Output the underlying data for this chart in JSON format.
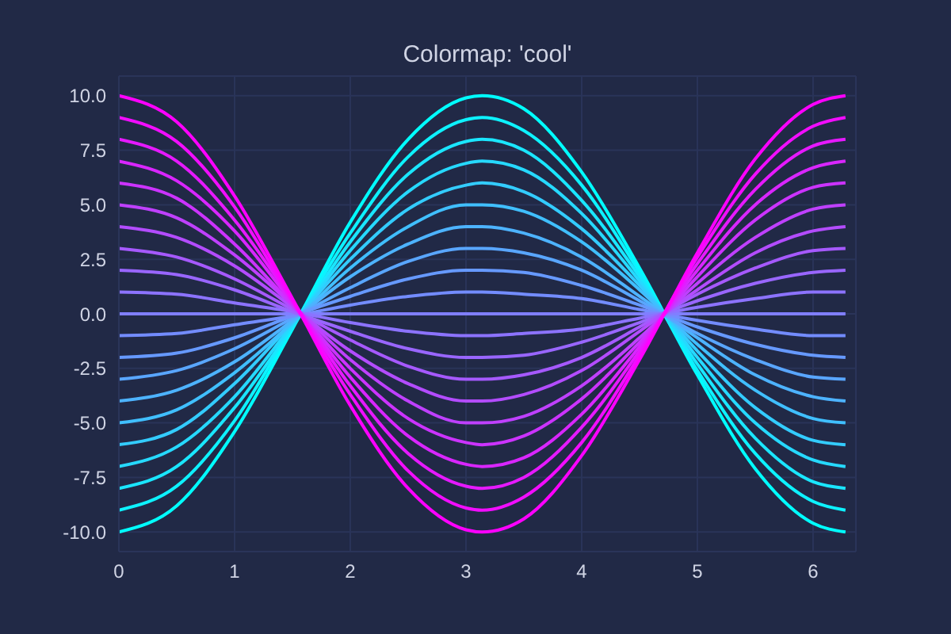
{
  "chart_data": {
    "type": "line",
    "title": "Colormap: 'cool'",
    "x": [
      0,
      0.5,
      1,
      1.5,
      2,
      2.5,
      3,
      3.14,
      3.5,
      4,
      4.5,
      5,
      5.5,
      6,
      6.28
    ],
    "xlim": [
      0,
      6.37
    ],
    "xticks": [
      0,
      1,
      2,
      3,
      4,
      5,
      6
    ],
    "ylim": [
      -10.9,
      10.9
    ],
    "yticks": [
      {
        "value": -10,
        "label": "-10.0"
      },
      {
        "value": -7.5,
        "label": "-7.5"
      },
      {
        "value": -5,
        "label": "-5.0"
      },
      {
        "value": -2.5,
        "label": "-2.5"
      },
      {
        "value": 0,
        "label": "0.0"
      },
      {
        "value": 2.5,
        "label": "2.5"
      },
      {
        "value": 5,
        "label": "5.0"
      },
      {
        "value": 7.5,
        "label": "7.5"
      },
      {
        "value": 10,
        "label": "10.0"
      }
    ],
    "grid": true,
    "marker": "none",
    "line_style": "solid",
    "series": [
      {
        "color": "#00ffff",
        "values": [
          -10,
          -8.8,
          -5.4,
          -0.7,
          4.2,
          8,
          9.9,
          10,
          9.4,
          6.5,
          2.1,
          -2.8,
          -7.1,
          -9.6,
          -10
        ]
      },
      {
        "color": "#0df2ff",
        "values": [
          -9,
          -7.9,
          -4.9,
          -0.6,
          3.7,
          7.2,
          8.9,
          9,
          8.4,
          5.9,
          1.9,
          -2.6,
          -6.4,
          -8.6,
          -9
        ]
      },
      {
        "color": "#1ae6ff",
        "values": [
          -8,
          -7,
          -4.3,
          -0.6,
          3.3,
          6.4,
          7.9,
          8,
          7.5,
          5.2,
          1.7,
          -2.3,
          -5.7,
          -7.7,
          -8
        ]
      },
      {
        "color": "#26d9ff",
        "values": [
          -7,
          -6.1,
          -3.8,
          -0.5,
          2.9,
          5.6,
          6.9,
          7,
          6.6,
          4.6,
          1.5,
          -2,
          -5,
          -6.7,
          -7
        ]
      },
      {
        "color": "#33ccff",
        "values": [
          -6,
          -5.3,
          -3.2,
          -0.4,
          2.5,
          4.8,
          5.9,
          6,
          5.6,
          3.9,
          1.3,
          -1.7,
          -4.3,
          -5.8,
          -6
        ]
      },
      {
        "color": "#40bfff",
        "values": [
          -5,
          -4.4,
          -2.7,
          -0.4,
          2.1,
          4,
          5,
          5,
          4.7,
          3.3,
          1.1,
          -1.4,
          -3.5,
          -4.8,
          -5
        ]
      },
      {
        "color": "#4db3ff",
        "values": [
          -4,
          -3.5,
          -2.2,
          -0.3,
          1.7,
          3.2,
          4,
          4,
          3.7,
          2.6,
          0.8,
          -1.1,
          -2.8,
          -3.8,
          -4
        ]
      },
      {
        "color": "#59a6ff",
        "values": [
          -3,
          -2.6,
          -1.6,
          -0.2,
          1.2,
          2.4,
          3,
          3,
          2.8,
          2,
          0.6,
          -0.9,
          -2.1,
          -2.9,
          -3
        ]
      },
      {
        "color": "#6699ff",
        "values": [
          -2,
          -1.8,
          -1.1,
          -0.1,
          0.8,
          1.6,
          2,
          2,
          1.9,
          1.3,
          0.4,
          -0.6,
          -1.4,
          -1.9,
          -2
        ]
      },
      {
        "color": "#738cff",
        "values": [
          -1,
          -0.9,
          -0.5,
          -0.1,
          0.4,
          0.8,
          1,
          1,
          0.9,
          0.7,
          0.2,
          -0.3,
          -0.7,
          -1,
          -1
        ]
      },
      {
        "color": "#807fff",
        "values": [
          0,
          0,
          0,
          0,
          0,
          0,
          0,
          0,
          0,
          0,
          0,
          0,
          0,
          0,
          0
        ]
      },
      {
        "color": "#8c73ff",
        "values": [
          1,
          0.9,
          0.5,
          0.1,
          -0.4,
          -0.8,
          -1,
          -1,
          -0.9,
          -0.7,
          -0.2,
          0.3,
          0.7,
          1,
          1
        ]
      },
      {
        "color": "#9966ff",
        "values": [
          2,
          1.8,
          1.1,
          0.1,
          -0.8,
          -1.6,
          -2,
          -2,
          -1.9,
          -1.3,
          -0.4,
          0.6,
          1.4,
          1.9,
          2
        ]
      },
      {
        "color": "#a659ff",
        "values": [
          3,
          2.6,
          1.6,
          0.2,
          -1.2,
          -2.4,
          -3,
          -3,
          -2.8,
          -2,
          -0.6,
          0.9,
          2.1,
          2.9,
          3
        ]
      },
      {
        "color": "#b34cff",
        "values": [
          4,
          3.5,
          2.2,
          0.3,
          -1.7,
          -3.2,
          -4,
          -4,
          -3.7,
          -2.6,
          -0.8,
          1.1,
          2.8,
          3.8,
          4
        ]
      },
      {
        "color": "#bf40ff",
        "values": [
          5,
          4.4,
          2.7,
          0.4,
          -2.1,
          -4,
          -5,
          -5,
          -4.7,
          -3.3,
          -1.1,
          1.4,
          3.5,
          4.8,
          5
        ]
      },
      {
        "color": "#cc33ff",
        "values": [
          6,
          5.3,
          3.2,
          0.4,
          -2.5,
          -4.8,
          -5.9,
          -6,
          -5.6,
          -3.9,
          -1.3,
          1.7,
          4.3,
          5.8,
          6
        ]
      },
      {
        "color": "#d926ff",
        "values": [
          7,
          6.1,
          3.8,
          0.5,
          -2.9,
          -5.6,
          -6.9,
          -7,
          -6.6,
          -4.6,
          -1.5,
          2,
          5,
          6.7,
          7
        ]
      },
      {
        "color": "#e619ff",
        "values": [
          8,
          7,
          4.3,
          0.6,
          -3.3,
          -6.4,
          -7.9,
          -8,
          -7.5,
          -5.2,
          -1.7,
          2.3,
          5.7,
          7.7,
          8
        ]
      },
      {
        "color": "#f20dff",
        "values": [
          9,
          7.9,
          4.9,
          0.6,
          -3.7,
          -7.2,
          -8.9,
          -9,
          -8.4,
          -5.9,
          -1.9,
          2.6,
          6.4,
          8.6,
          9
        ]
      },
      {
        "color": "#ff00ff",
        "values": [
          10,
          8.8,
          5.4,
          0.7,
          -4.2,
          -8,
          -9.9,
          -10,
          -9.4,
          -6.5,
          -2.1,
          2.8,
          7.1,
          9.6,
          10
        ]
      }
    ]
  }
}
